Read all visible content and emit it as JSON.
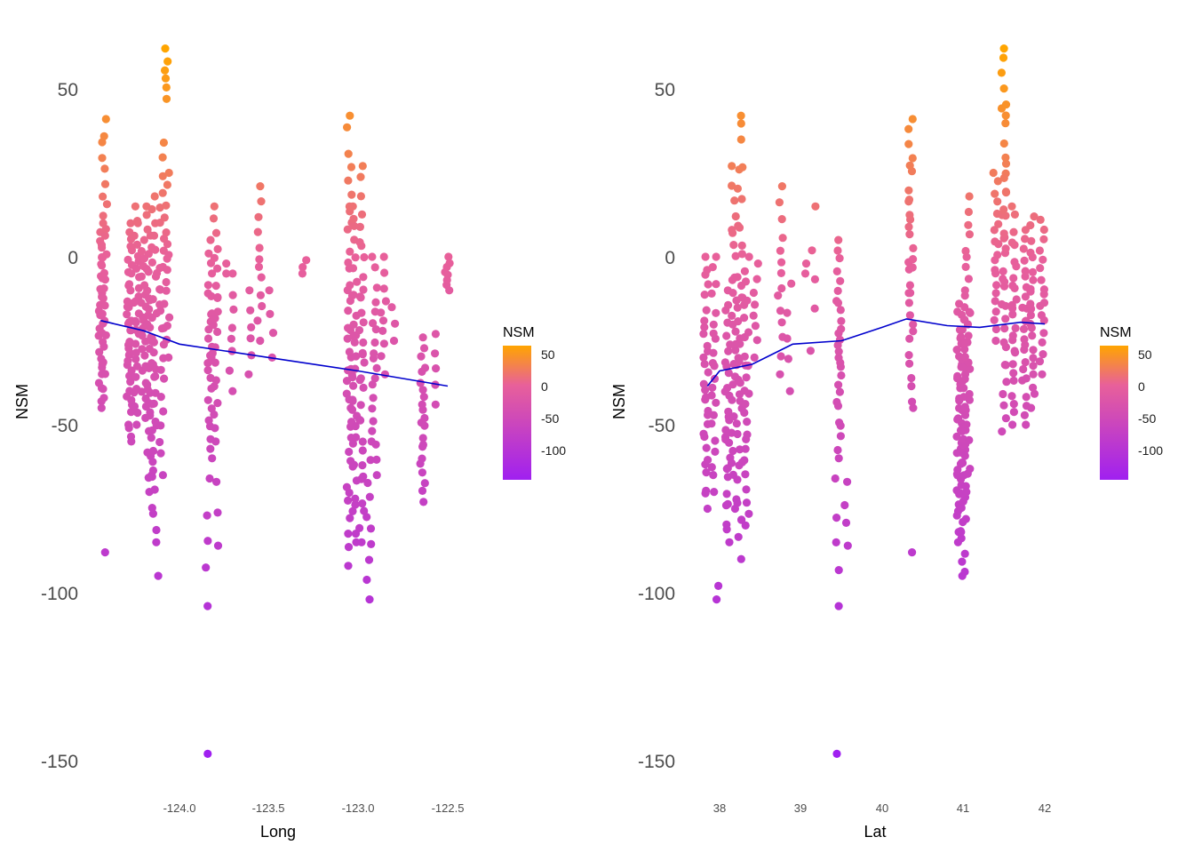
{
  "chart_data": [
    {
      "type": "scatter",
      "xlabel": "Long",
      "ylabel": "NSM",
      "xticks": [
        -124.0,
        -123.5,
        -123.0,
        -122.5
      ],
      "xtick_labels": [
        "-124.0",
        "-123.5",
        "-123.0",
        "-122.5"
      ],
      "xlim": [
        -124.48,
        -122.4
      ],
      "yticks": [
        50,
        0,
        -50,
        -100,
        -150
      ],
      "ytick_labels": [
        "50",
        "0",
        "-50",
        "-100",
        "-150"
      ],
      "ylim": [
        -158,
        72
      ],
      "grid": false,
      "legend": {
        "title": "NSM",
        "position": "right",
        "ticks": [
          50,
          0,
          -50,
          -100
        ],
        "tick_labels": [
          "50",
          "0",
          "-50",
          "-100"
        ],
        "range": [
          -148,
          62
        ]
      },
      "color_scale": {
        "low": "#a020f0",
        "mid": "#e8609a",
        "high": "#ffa500"
      },
      "smooth_color": "#0000cd",
      "clusters": [
        {
          "x": -124.44,
          "ymin": -45,
          "ymax": 10,
          "n": 30
        },
        {
          "x": -124.42,
          "ymin": -42,
          "ymax": 41,
          "n": 26
        },
        {
          "x": -124.41,
          "ymin": -88,
          "ymax": -88,
          "n": 1
        },
        {
          "x": -124.28,
          "ymin": -55,
          "ymax": 10,
          "n": 40
        },
        {
          "x": -124.24,
          "ymin": -50,
          "ymax": 15,
          "n": 28
        },
        {
          "x": -124.2,
          "ymin": -48,
          "ymax": 5,
          "n": 24
        },
        {
          "x": -124.17,
          "ymin": -70,
          "ymax": 15,
          "n": 34
        },
        {
          "x": -124.14,
          "ymin": -85,
          "ymax": 18,
          "n": 34
        },
        {
          "x": -124.13,
          "ymin": -95,
          "ymax": -95,
          "n": 1
        },
        {
          "x": -124.1,
          "ymin": -65,
          "ymax": 34,
          "n": 26
        },
        {
          "x": -124.08,
          "ymin": 47,
          "ymax": 62,
          "n": 6
        },
        {
          "x": -124.07,
          "ymin": -30,
          "ymax": 25,
          "n": 16
        },
        {
          "x": -123.84,
          "ymin": -104,
          "ymax": -66,
          "n": 5
        },
        {
          "x": -123.83,
          "ymin": -60,
          "ymax": 5,
          "n": 26
        },
        {
          "x": -123.8,
          "ymin": -55,
          "ymax": 15,
          "n": 22
        },
        {
          "x": -123.79,
          "ymin": -86,
          "ymax": -67,
          "n": 3
        },
        {
          "x": -123.84,
          "ymin": -148,
          "ymax": -148,
          "n": 1
        },
        {
          "x": -123.75,
          "ymin": -5,
          "ymax": -2,
          "n": 2
        },
        {
          "x": -123.71,
          "ymin": -40,
          "ymax": -5,
          "n": 8
        },
        {
          "x": -123.6,
          "ymin": -35,
          "ymax": -10,
          "n": 6
        },
        {
          "x": -123.55,
          "ymin": -25,
          "ymax": 21,
          "n": 12
        },
        {
          "x": -123.49,
          "ymin": -30,
          "ymax": -10,
          "n": 4
        },
        {
          "x": -123.3,
          "ymin": -5,
          "ymax": -1,
          "n": 3
        },
        {
          "x": -123.05,
          "ymin": -92,
          "ymax": 42,
          "n": 40
        },
        {
          "x": -123.02,
          "ymin": -85,
          "ymax": 15,
          "n": 34
        },
        {
          "x": -122.98,
          "ymin": -85,
          "ymax": 27,
          "n": 34
        },
        {
          "x": -122.94,
          "ymin": -102,
          "ymax": -55,
          "n": 10
        },
        {
          "x": -122.91,
          "ymin": -65,
          "ymax": 0,
          "n": 20
        },
        {
          "x": -122.86,
          "ymin": -35,
          "ymax": 0,
          "n": 10
        },
        {
          "x": -122.8,
          "ymin": -25,
          "ymax": -15,
          "n": 3
        },
        {
          "x": -122.64,
          "ymin": -73,
          "ymax": -24,
          "n": 22
        },
        {
          "x": -122.57,
          "ymin": -44,
          "ymax": -23,
          "n": 5
        },
        {
          "x": -122.5,
          "ymin": -10,
          "ymax": 0,
          "n": 8
        }
      ],
      "smooth": {
        "x": [
          -124.44,
          -124.2,
          -124.0,
          -123.5,
          -123.0,
          -122.5
        ],
        "y": [
          -19,
          -22,
          -26,
          -30,
          -34,
          -38.5
        ]
      }
    },
    {
      "type": "scatter",
      "xlabel": "Lat",
      "ylabel": "NSM",
      "xticks": [
        38,
        39,
        40,
        41,
        42
      ],
      "xtick_labels": [
        "38",
        "39",
        "40",
        "41",
        "42"
      ],
      "xlim": [
        37.7,
        42.16
      ],
      "yticks": [
        50,
        0,
        -50,
        -100,
        -150
      ],
      "ytick_labels": [
        "50",
        "0",
        "-50",
        "-100",
        "-150"
      ],
      "ylim": [
        -158,
        72
      ],
      "grid": false,
      "legend": {
        "title": "NSM",
        "position": "right",
        "ticks": [
          50,
          0,
          -50,
          -100
        ],
        "tick_labels": [
          "50",
          "0",
          "-50",
          "-100"
        ],
        "range": [
          -148,
          62
        ]
      },
      "color_scale": {
        "low": "#a020f0",
        "mid": "#e8609a",
        "high": "#ffa500"
      },
      "smooth_color": "#0000cd",
      "clusters": [
        {
          "x": 37.83,
          "ymin": -75,
          "ymax": 0,
          "n": 30
        },
        {
          "x": 37.96,
          "ymin": -102,
          "ymax": -98,
          "n": 2
        },
        {
          "x": 37.93,
          "ymin": -70,
          "ymax": 0,
          "n": 22
        },
        {
          "x": 38.1,
          "ymin": -85,
          "ymax": -10,
          "n": 30
        },
        {
          "x": 38.18,
          "ymin": -75,
          "ymax": 27,
          "n": 30
        },
        {
          "x": 38.25,
          "ymin": -90,
          "ymax": 42,
          "n": 36
        },
        {
          "x": 38.33,
          "ymin": -80,
          "ymax": 0,
          "n": 26
        },
        {
          "x": 38.45,
          "ymin": -30,
          "ymax": -2,
          "n": 8
        },
        {
          "x": 38.75,
          "ymin": -35,
          "ymax": 21,
          "n": 14
        },
        {
          "x": 38.85,
          "ymin": -40,
          "ymax": -8,
          "n": 5
        },
        {
          "x": 39.05,
          "ymin": -5,
          "ymax": -2,
          "n": 2
        },
        {
          "x": 39.15,
          "ymin": -28,
          "ymax": 15,
          "n": 5
        },
        {
          "x": 39.45,
          "ymin": -104,
          "ymax": -66,
          "n": 5
        },
        {
          "x": 39.47,
          "ymin": -60,
          "ymax": 5,
          "n": 28
        },
        {
          "x": 39.55,
          "ymin": -86,
          "ymax": -67,
          "n": 4
        },
        {
          "x": 39.45,
          "ymin": -148,
          "ymax": -148,
          "n": 1
        },
        {
          "x": 40.35,
          "ymin": -45,
          "ymax": 41,
          "n": 32
        },
        {
          "x": 40.38,
          "ymin": -88,
          "ymax": -88,
          "n": 1
        },
        {
          "x": 40.95,
          "ymin": -85,
          "ymax": -14,
          "n": 40
        },
        {
          "x": 41.0,
          "ymin": -95,
          "ymax": -15,
          "n": 40
        },
        {
          "x": 41.05,
          "ymin": -70,
          "ymax": 18,
          "n": 30
        },
        {
          "x": 41.4,
          "ymin": -25,
          "ymax": 25,
          "n": 20
        },
        {
          "x": 41.5,
          "ymin": -52,
          "ymax": 62,
          "n": 40
        },
        {
          "x": 41.62,
          "ymin": -50,
          "ymax": 15,
          "n": 26
        },
        {
          "x": 41.75,
          "ymin": -50,
          "ymax": 8,
          "n": 24
        },
        {
          "x": 41.85,
          "ymin": -45,
          "ymax": 12,
          "n": 22
        },
        {
          "x": 41.97,
          "ymin": -35,
          "ymax": 11,
          "n": 18
        }
      ],
      "smooth": {
        "x": [
          37.85,
          38.0,
          38.4,
          38.9,
          39.5,
          40.0,
          40.3,
          40.8,
          41.2,
          41.7,
          42.0
        ],
        "y": [
          -38.5,
          -34,
          -32,
          -26,
          -25,
          -21,
          -18.5,
          -20.5,
          -21,
          -19.5,
          -20
        ]
      }
    }
  ]
}
